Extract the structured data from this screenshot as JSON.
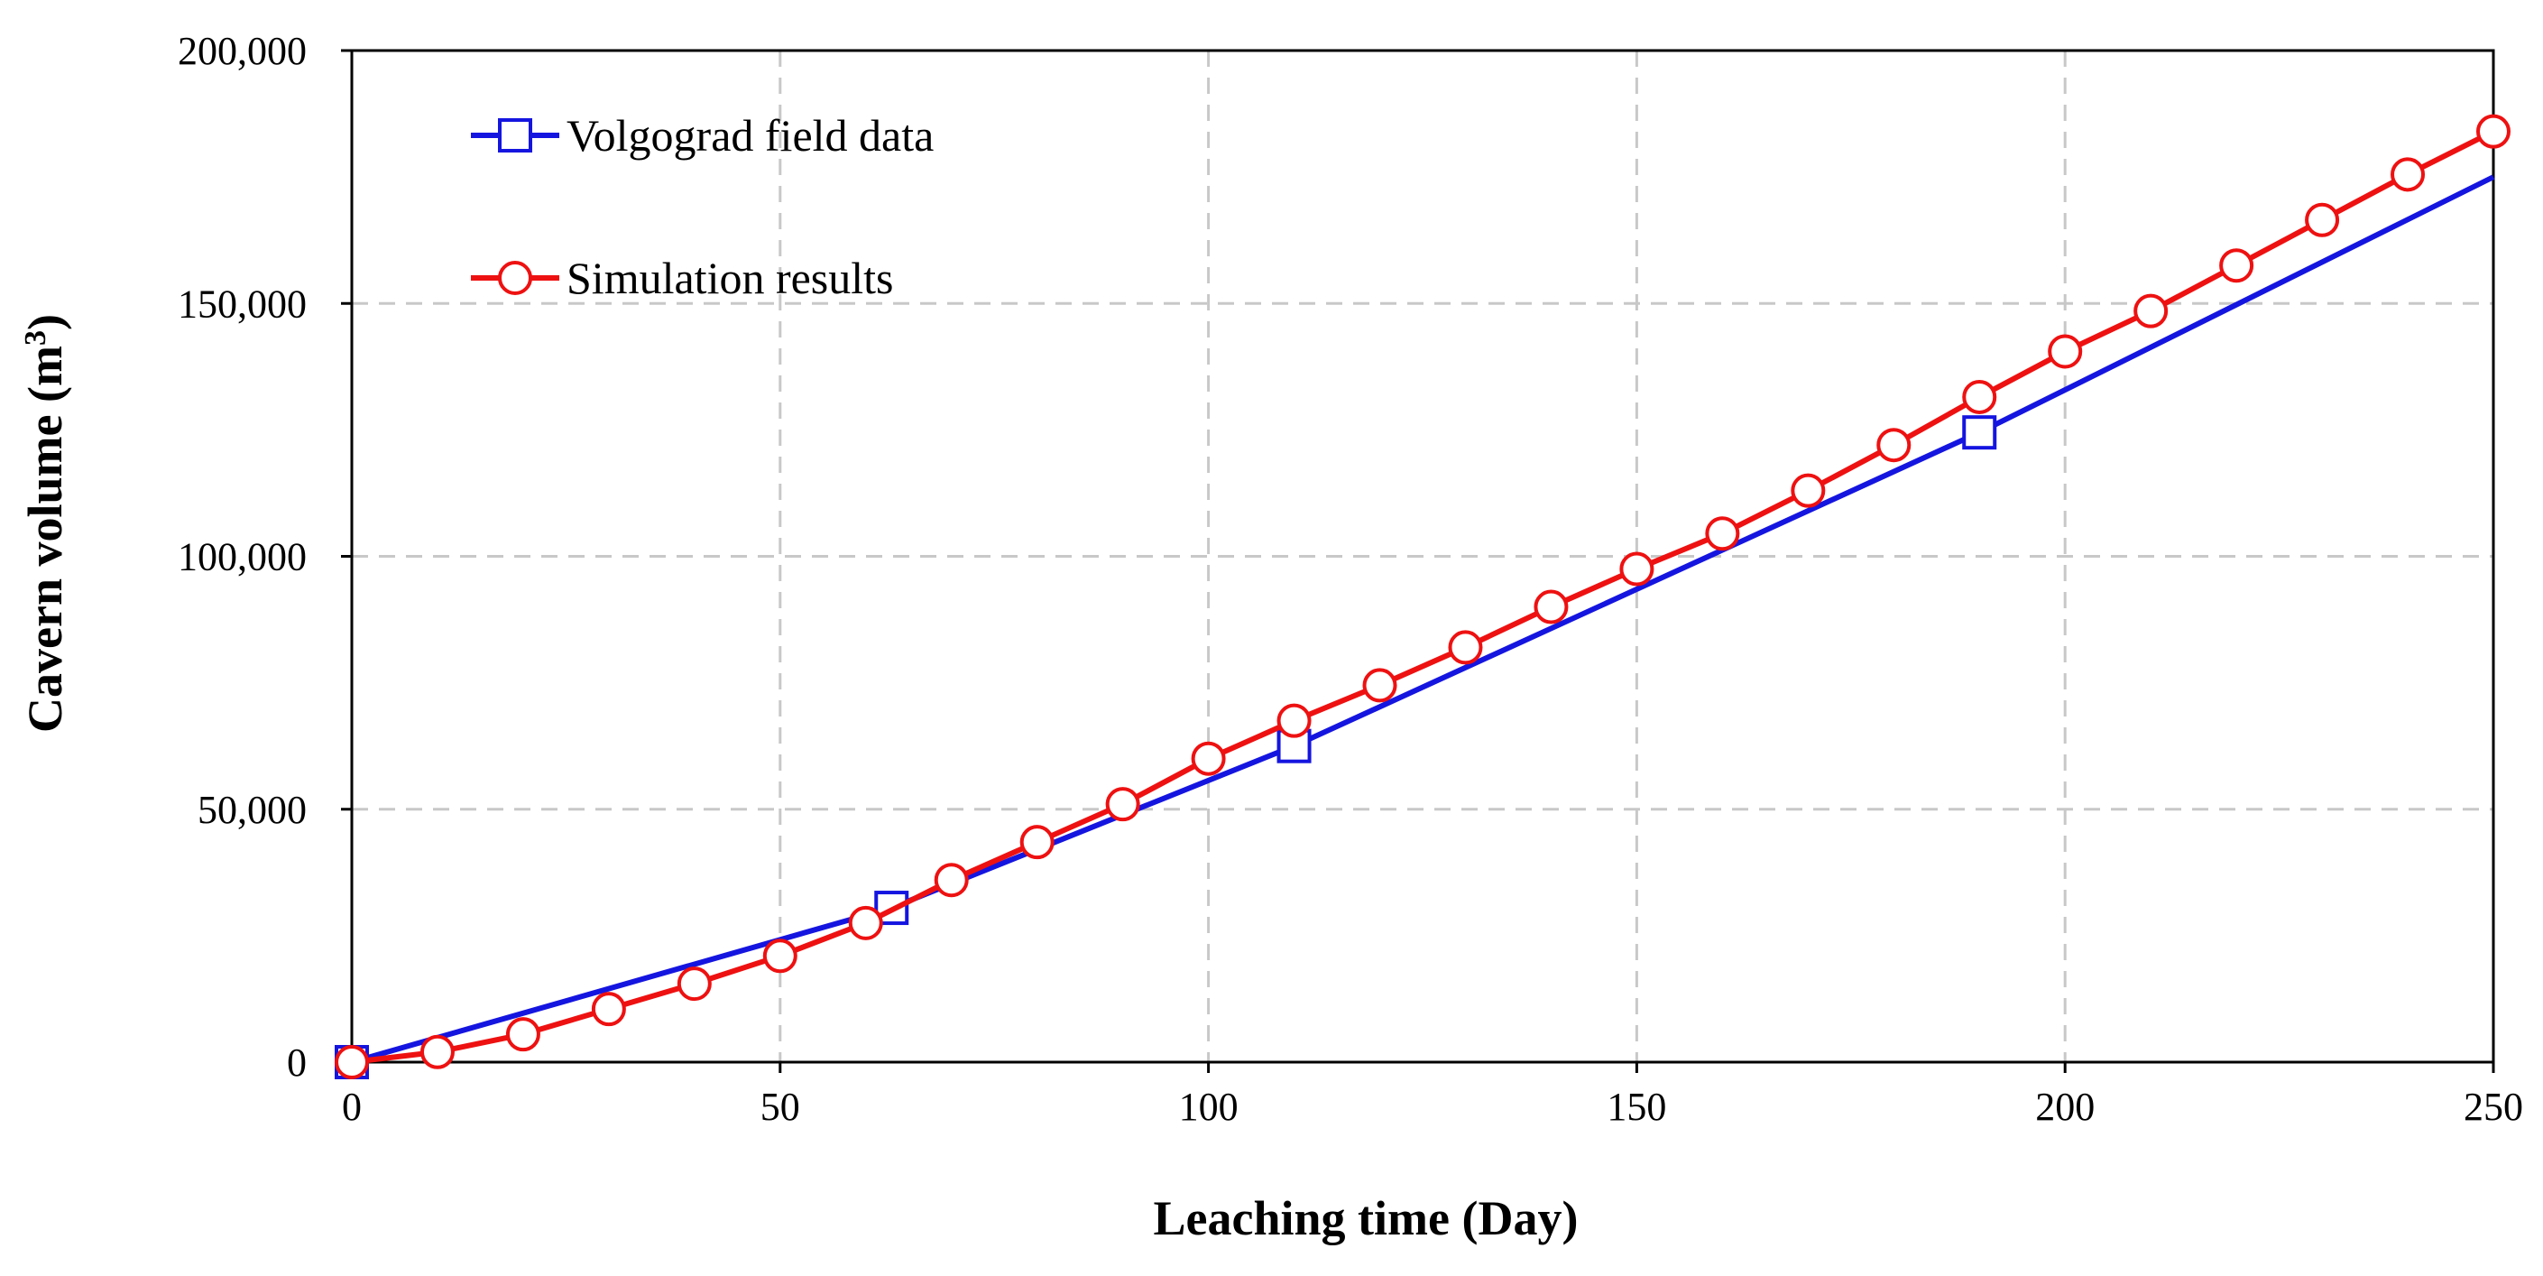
{
  "chart_data": {
    "type": "line",
    "title": "",
    "xlabel": "Leaching time (Day)",
    "ylabel_main": "Cavern volume (m",
    "ylabel_sup": "3",
    "ylabel_close": ")",
    "xlim": [
      0,
      250
    ],
    "ylim": [
      0,
      200000
    ],
    "x_ticks": [
      0,
      50,
      100,
      150,
      200,
      250
    ],
    "x_tick_labels": [
      "0",
      "50",
      "100",
      "150",
      "200",
      "250"
    ],
    "y_ticks": [
      0,
      50000,
      100000,
      150000,
      200000
    ],
    "y_tick_labels": [
      "0",
      "50,000",
      "100,000",
      "150,000",
      "200,000"
    ],
    "grid": true,
    "legend_position": "top-left",
    "series": [
      {
        "name": "Volgograd field data",
        "color": "#1515e0",
        "marker": "square",
        "line_points": [
          [
            0,
            0
          ],
          [
            63,
            30500
          ],
          [
            110,
            62500
          ],
          [
            190,
            124500
          ],
          [
            250,
            175000
          ]
        ],
        "marker_points": [
          [
            0,
            0
          ],
          [
            63,
            30500
          ],
          [
            110,
            62500
          ],
          [
            190,
            124500
          ]
        ]
      },
      {
        "name": "Simulation results",
        "color": "#ee1111",
        "marker": "circle",
        "x": [
          0,
          10,
          20,
          30,
          40,
          50,
          60,
          70,
          80,
          90,
          100,
          110,
          120,
          130,
          140,
          150,
          160,
          170,
          180,
          190,
          200,
          210,
          220,
          230,
          240,
          250
        ],
        "y": [
          0,
          2000,
          5500,
          10500,
          15500,
          21000,
          27500,
          36000,
          43500,
          51000,
          60000,
          67500,
          74500,
          82000,
          90000,
          97500,
          104500,
          113000,
          122000,
          131500,
          140500,
          148500,
          157500,
          166500,
          175500,
          184000
        ]
      }
    ]
  }
}
